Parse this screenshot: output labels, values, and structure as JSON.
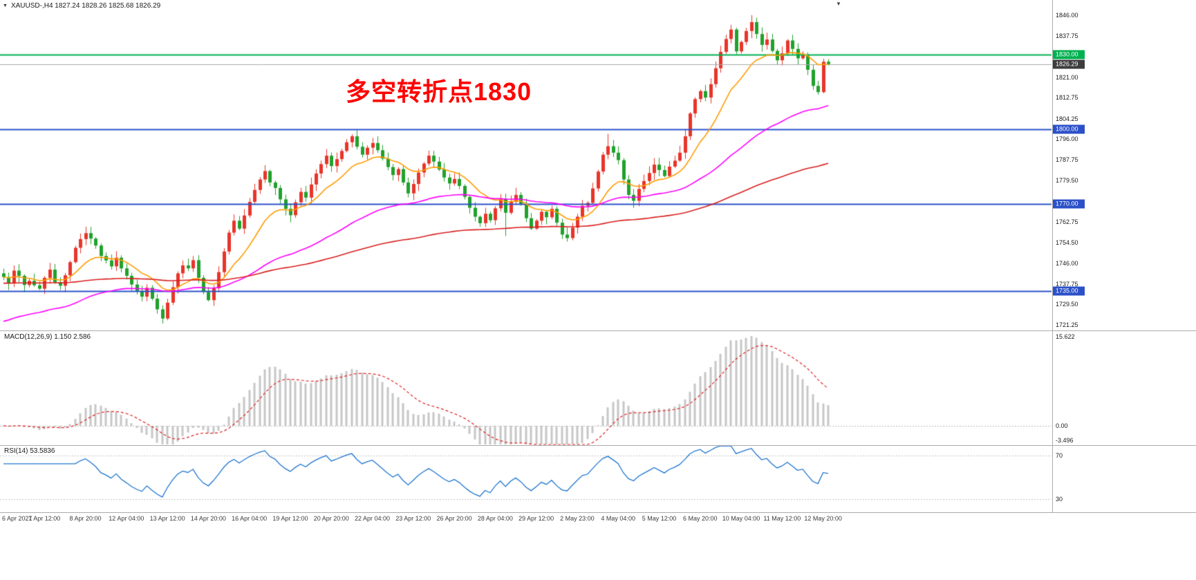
{
  "header": {
    "symbol_line": "XAUUSD-,H4 1827.24 1828.26 1825.68 1826.29",
    "dropdown_icon": "▼",
    "shift_marker_icon": "▼"
  },
  "annotation": {
    "text": "多空转折点1830",
    "color": "#ff0000"
  },
  "chart_data": {
    "type": "candlestick",
    "symbol": "XAUUSD-",
    "timeframe": "H4",
    "current_bar": {
      "open": 1827.24,
      "high": 1828.26,
      "low": 1825.68,
      "close": 1826.29
    },
    "ylim": [
      1719.0,
      1852.1
    ],
    "y_ticks": [
      "1846.00",
      "1837.75",
      "1821.00",
      "1812.75",
      "1804.25",
      "1796.00",
      "1787.75",
      "1779.50",
      "1762.75",
      "1754.50",
      "1746.00",
      "1737.75",
      "1729.50",
      "1721.25"
    ],
    "x_labels": [
      "6 Apr 2021",
      "7 Apr 12:00",
      "8 Apr 20:00",
      "12 Apr 04:00",
      "13 Apr 12:00",
      "14 Apr 20:00",
      "16 Apr 04:00",
      "19 Apr 12:00",
      "20 Apr 20:00",
      "22 Apr 04:00",
      "23 Apr 12:00",
      "26 Apr 20:00",
      "28 Apr 04:00",
      "29 Apr 12:00",
      "2 May 23:00",
      "4 May 04:00",
      "5 May 12:00",
      "6 May 20:00",
      "10 May 04:00",
      "11 May 12:00",
      "12 May 20:00"
    ],
    "bars_per_label": 8,
    "first_open": 1742.0,
    "closes": [
      1740.5,
      1738.2,
      1743.1,
      1741.0,
      1737.3,
      1739.0,
      1737.2,
      1735.8,
      1740.2,
      1743.5,
      1738.4,
      1737.0,
      1741.2,
      1746.5,
      1752.3,
      1755.8,
      1758.2,
      1756.0,
      1753.2,
      1749.0,
      1747.2,
      1744.8,
      1748.3,
      1744.0,
      1741.0,
      1737.5,
      1734.8,
      1732.6,
      1736.2,
      1731.8,
      1727.5,
      1723.8,
      1730.2,
      1736.4,
      1742.0,
      1745.2,
      1744.0,
      1747.3,
      1740.2,
      1734.5,
      1731.2,
      1736.0,
      1742.5,
      1750.8,
      1758.4,
      1763.2,
      1760.0,
      1765.3,
      1770.8,
      1775.6,
      1779.8,
      1783.2,
      1778.6,
      1776.4,
      1771.8,
      1768.0,
      1765.4,
      1770.6,
      1774.8,
      1772.5,
      1777.8,
      1782.2,
      1786.0,
      1789.4,
      1785.2,
      1788.0,
      1791.3,
      1794.8,
      1797.2,
      1793.0,
      1789.8,
      1792.6,
      1794.5,
      1791.6,
      1788.2,
      1784.8,
      1781.6,
      1784.0,
      1778.6,
      1774.2,
      1778.0,
      1782.6,
      1786.2,
      1789.4,
      1787.0,
      1783.8,
      1780.6,
      1778.2,
      1780.0,
      1777.2,
      1772.8,
      1768.4,
      1764.8,
      1762.2,
      1766.0,
      1763.4,
      1768.2,
      1772.0,
      1766.4,
      1770.8,
      1773.6,
      1770.0,
      1764.2,
      1760.0,
      1763.2,
      1766.8,
      1764.6,
      1768.0,
      1762.4,
      1757.6,
      1756.2,
      1760.4,
      1764.8,
      1769.2,
      1770.4,
      1776.2,
      1783.0,
      1789.8,
      1793.2,
      1790.6,
      1787.6,
      1779.8,
      1773.6,
      1771.2,
      1776.0,
      1779.2,
      1782.4,
      1785.8,
      1783.6,
      1781.2,
      1785.0,
      1787.4,
      1790.6,
      1797.2,
      1806.4,
      1812.2,
      1815.4,
      1812.8,
      1818.2,
      1824.6,
      1831.2,
      1836.4,
      1840.2,
      1831.4,
      1835.2,
      1839.6,
      1843.2,
      1838.4,
      1834.0,
      1836.2,
      1831.6,
      1827.8,
      1830.6,
      1835.8,
      1832.4,
      1828.6,
      1830.0,
      1824.0,
      1817.5,
      1815.0,
      1827.24,
      1826.29
    ],
    "wick_overrides": {
      "31": {
        "low": 1721.8
      },
      "98": {
        "low": 1757.0
      },
      "110": {
        "low": 1754.8
      },
      "118": {
        "high": 1798.2
      },
      "137": {
        "high": 1817.9
      },
      "146": {
        "high": 1846.0
      },
      "161": {
        "high": 1828.26,
        "low": 1825.68
      }
    },
    "levels": [
      {
        "label": "1830.00",
        "value": 1830.0,
        "color": "#00b050",
        "width": 2
      },
      {
        "label": "1800.00",
        "value": 1800.0,
        "color": "#2b50c8",
        "width": 2
      },
      {
        "label": "1770.00",
        "value": 1770.0,
        "color": "#2b50c8",
        "width": 2
      },
      {
        "label": "1735.00",
        "value": 1735.0,
        "color": "#2b50c8",
        "width": 2
      }
    ],
    "current_price": {
      "label": "1826.29",
      "value": 1826.29,
      "badge_color": "#3d3d3d",
      "line_color": "#a8a8a8"
    },
    "moving_averages": [
      {
        "name": "fast-ma",
        "period": 13,
        "color": "#ff9c00",
        "seed": 1740.5
      },
      {
        "name": "medium-ma",
        "period": 55,
        "color": "#ff00ff",
        "seed": 1722.0
      },
      {
        "name": "slow-ma",
        "period": 144,
        "color": "#d81e1e",
        "seed": 1738.0
      }
    ],
    "candle_colors": {
      "up": "#e8352a",
      "down": "#21a12c"
    },
    "macd": {
      "display": "MACD(12,26,9) 1.150 2.586",
      "fast": 12,
      "slow": 26,
      "signal": 9,
      "value_main": 1.15,
      "value_signal": 2.586,
      "axis_labels": [
        "15.622",
        "0.00",
        "-3.496"
      ],
      "ylim": [
        -3.4,
        16.6
      ],
      "hist_color": "#c6c6c6",
      "signal_color": "#e02020"
    },
    "rsi": {
      "display": "RSI(14) 53.5836",
      "period": 14,
      "value": 53.5836,
      "levels": [
        70,
        30
      ],
      "axis_labels": [
        "70",
        "30"
      ],
      "ylim": [
        17.9,
        78.9
      ],
      "line_color": "#1d74d0",
      "level_color": "#c0c0c0"
    }
  }
}
